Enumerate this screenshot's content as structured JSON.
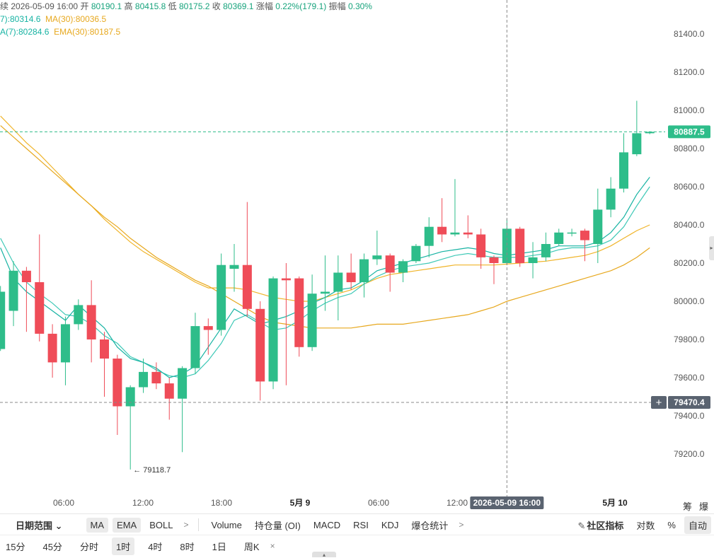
{
  "legend": {
    "line1_prefix": "续",
    "datetime": "2026-05-09 16:00",
    "open_label": "开",
    "open": "80190.1",
    "high_label": "高",
    "high": "80415.8",
    "low_label": "低",
    "low": "80175.2",
    "close_label": "收",
    "close": "80369.1",
    "change_label": "涨幅",
    "change": "0.22%(179.1)",
    "amp_label": "振幅",
    "amp": "0.30%",
    "ma7": "7):80314.6",
    "ma30": "MA(30):80036.5",
    "ema7": "A(7):80284.6",
    "ema30": "EMA(30):80187.5"
  },
  "colors": {
    "up": "#2ebd8a",
    "down": "#ef4c58",
    "ma_fast": "#17b3a3",
    "ma_fast2": "#3fc9b7",
    "ma_slow": "#f0b429",
    "ma_slow2": "#e7a81e"
  },
  "price_axis": {
    "ticks": [
      "81400.0",
      "81200.0",
      "81000.0",
      "80800.0",
      "80600.0",
      "80400.0",
      "80200.0",
      "80000.0",
      "79800.0",
      "79600.0",
      "79400.0",
      "79200.0"
    ],
    "current_price": "80887.5",
    "crosshair_price": "79470.4"
  },
  "time_axis": {
    "ticks": [
      "06:00",
      "12:00",
      "18:00",
      "5月 9",
      "06:00",
      "12:00",
      "5月 10"
    ],
    "crosshair_label": "2026-05-09 16:00"
  },
  "low_marker": "← 79118.7",
  "corner": {
    "chips": "筹",
    "burst": "爆"
  },
  "chart_data": {
    "type": "candlestick",
    "interval": "1时",
    "ylim": [
      79080,
      81530
    ],
    "candles": [
      {
        "o": 79750,
        "c": 80050,
        "h": 80080,
        "l": 79740
      },
      {
        "o": 79950,
        "c": 80160,
        "h": 80210,
        "l": 79870
      },
      {
        "o": 80160,
        "c": 80100,
        "h": 80180,
        "l": 79840
      },
      {
        "o": 80100,
        "c": 79830,
        "h": 80350,
        "l": 79790
      },
      {
        "o": 79830,
        "c": 79680,
        "h": 79880,
        "l": 79600
      },
      {
        "o": 79680,
        "c": 79880,
        "h": 79920,
        "l": 79560
      },
      {
        "o": 79880,
        "c": 79980,
        "h": 80010,
        "l": 79850
      },
      {
        "o": 79980,
        "c": 79800,
        "h": 80110,
        "l": 79680
      },
      {
        "o": 79800,
        "c": 79700,
        "h": 79840,
        "l": 79500
      },
      {
        "o": 79700,
        "c": 79450,
        "h": 79720,
        "l": 79300
      },
      {
        "o": 79450,
        "c": 79550,
        "h": 79560,
        "l": 79119
      },
      {
        "o": 79550,
        "c": 79630,
        "h": 79700,
        "l": 79520
      },
      {
        "o": 79630,
        "c": 79570,
        "h": 79680,
        "l": 79540
      },
      {
        "o": 79570,
        "c": 79490,
        "h": 79600,
        "l": 79380
      },
      {
        "o": 79490,
        "c": 79650,
        "h": 79660,
        "l": 79210
      },
      {
        "o": 79650,
        "c": 79870,
        "h": 79940,
        "l": 79620
      },
      {
        "o": 79870,
        "c": 79850,
        "h": 79910,
        "l": 79720
      },
      {
        "o": 79850,
        "c": 80190,
        "h": 80250,
        "l": 79820
      },
      {
        "o": 80170,
        "c": 80190,
        "h": 80300,
        "l": 80050
      },
      {
        "o": 80190,
        "c": 79960,
        "h": 80520,
        "l": 79920
      },
      {
        "o": 79960,
        "c": 79580,
        "h": 80000,
        "l": 79480
      },
      {
        "o": 79580,
        "c": 80120,
        "h": 80130,
        "l": 79540
      },
      {
        "o": 80120,
        "c": 80110,
        "h": 80200,
        "l": 79560
      },
      {
        "o": 80120,
        "c": 79760,
        "h": 80130,
        "l": 79710
      },
      {
        "o": 79760,
        "c": 80040,
        "h": 80140,
        "l": 79740
      },
      {
        "o": 80040,
        "c": 80050,
        "h": 80240,
        "l": 79950
      },
      {
        "o": 80050,
        "c": 80150,
        "h": 80240,
        "l": 79900
      },
      {
        "o": 80150,
        "c": 80100,
        "h": 80250,
        "l": 80060
      },
      {
        "o": 80100,
        "c": 80220,
        "h": 80250,
        "l": 80020
      },
      {
        "o": 80220,
        "c": 80240,
        "h": 80370,
        "l": 80190
      },
      {
        "o": 80240,
        "c": 80150,
        "h": 80250,
        "l": 80050
      },
      {
        "o": 80150,
        "c": 80210,
        "h": 80220,
        "l": 80100
      },
      {
        "o": 80210,
        "c": 80290,
        "h": 80300,
        "l": 80200
      },
      {
        "o": 80290,
        "c": 80390,
        "h": 80440,
        "l": 80230
      },
      {
        "o": 80390,
        "c": 80350,
        "h": 80540,
        "l": 80310
      },
      {
        "o": 80350,
        "c": 80360,
        "h": 80640,
        "l": 80340
      },
      {
        "o": 80360,
        "c": 80350,
        "h": 80450,
        "l": 80330
      },
      {
        "o": 80350,
        "c": 80230,
        "h": 80380,
        "l": 80170
      },
      {
        "o": 80230,
        "c": 80200,
        "h": 80240,
        "l": 80090
      },
      {
        "o": 80200,
        "c": 80380,
        "h": 80430,
        "l": 80190
      },
      {
        "o": 80380,
        "c": 80200,
        "h": 80390,
        "l": 80180
      },
      {
        "o": 80200,
        "c": 80230,
        "h": 80310,
        "l": 80120
      },
      {
        "o": 80230,
        "c": 80300,
        "h": 80360,
        "l": 80210
      },
      {
        "o": 80300,
        "c": 80360,
        "h": 80380,
        "l": 80290
      },
      {
        "o": 80360,
        "c": 80360,
        "h": 80380,
        "l": 80340
      },
      {
        "o": 80370,
        "c": 80320,
        "h": 80380,
        "l": 80210
      },
      {
        "o": 80300,
        "c": 80480,
        "h": 80590,
        "l": 80200
      },
      {
        "o": 80480,
        "c": 80590,
        "h": 80650,
        "l": 80440
      },
      {
        "o": 80590,
        "c": 80780,
        "h": 80880,
        "l": 80570
      },
      {
        "o": 80770,
        "c": 80880,
        "h": 81050,
        "l": 80760
      },
      {
        "o": 80880,
        "c": 80887.5,
        "h": 80890,
        "l": 80875
      }
    ],
    "ma_fast": [
      80280,
      80120,
      80050,
      80000,
      79950,
      79900,
      79980,
      79920,
      79860,
      79760,
      79700,
      79680,
      79650,
      79600,
      79620,
      79660,
      79760,
      79860,
      79960,
      79920,
      79880,
      79900,
      79920,
      79950,
      79990,
      80020,
      80060,
      80070,
      80110,
      80160,
      80180,
      80200,
      80220,
      80240,
      80260,
      80270,
      80280,
      80270,
      80250,
      80240,
      80250,
      80260,
      80270,
      80290,
      80290,
      80290,
      80310,
      80360,
      80440,
      80560,
      80650
    ],
    "ma_fast2": [
      80330,
      80200,
      80100,
      80040,
      79990,
      79930,
      79920,
      79880,
      79820,
      79780,
      79710,
      79680,
      79640,
      79610,
      79600,
      79620,
      79690,
      79780,
      79900,
      79930,
      79890,
      79850,
      79860,
      79900,
      79950,
      79990,
      80020,
      80040,
      80090,
      80130,
      80160,
      80180,
      80190,
      80200,
      80220,
      80240,
      80250,
      80240,
      80230,
      80230,
      80230,
      80240,
      80250,
      80270,
      80280,
      80280,
      80290,
      80320,
      80390,
      80500,
      80600
    ],
    "ma_slow": [
      80970,
      80900,
      80830,
      80770,
      80700,
      80630,
      80560,
      80500,
      80430,
      80370,
      80310,
      80260,
      80220,
      80180,
      80140,
      80100,
      80070,
      80070,
      80070,
      80060,
      80040,
      80020,
      80010,
      80000,
      80000,
      80020,
      80040,
      80060,
      80090,
      80120,
      80140,
      80150,
      80160,
      80170,
      80180,
      80190,
      80190,
      80190,
      80190,
      80195,
      80200,
      80205,
      80210,
      80220,
      80230,
      80240,
      80260,
      80290,
      80330,
      80370,
      80400
    ],
    "ma_slow2": [
      80920,
      80860,
      80800,
      80740,
      80680,
      80620,
      80560,
      80500,
      80440,
      80390,
      80330,
      80280,
      80230,
      80190,
      80150,
      80110,
      80080,
      80040,
      80000,
      79960,
      79920,
      79890,
      79880,
      79870,
      79860,
      79860,
      79860,
      79860,
      79870,
      79880,
      79880,
      79880,
      79890,
      79900,
      79910,
      79920,
      79930,
      79950,
      79970,
      80000,
      80020,
      80040,
      80060,
      80080,
      80100,
      80120,
      80140,
      80160,
      80190,
      80230,
      80280
    ]
  },
  "toolbar1": {
    "date_range": "日期范围",
    "chev_a": "⌄",
    "ma": "MA",
    "ema": "EMA",
    "boll": "BOLL",
    "chev_b": ">",
    "volume": "Volume",
    "oi": "持仓量 (OI)",
    "macd": "MACD",
    "rsi": "RSI",
    "kdj": "KDJ",
    "liq": "爆仓统计",
    "chev_c": ">",
    "community": "社区指标",
    "log": "对数",
    "pct": "%",
    "auto": "自动"
  },
  "toolbar2": {
    "intervals": [
      "15分",
      "45分",
      "分时",
      "1时",
      "4时",
      "8时",
      "1日",
      "周K"
    ],
    "close": "×"
  }
}
